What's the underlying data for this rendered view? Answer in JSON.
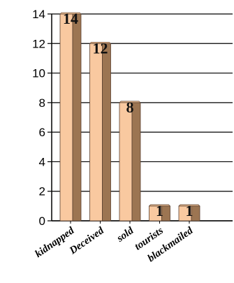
{
  "chart_data": {
    "type": "bar",
    "categories": [
      "kidnapped",
      "Deceived",
      "sold",
      "tourists",
      "blackmailed"
    ],
    "values": [
      14,
      12,
      8,
      1,
      1
    ],
    "data_labels": [
      "14",
      "12",
      "8",
      "1",
      "1"
    ],
    "title": "",
    "xlabel": "",
    "ylabel": "",
    "ylim": [
      0,
      14
    ],
    "yticks": [
      0,
      2,
      4,
      6,
      8,
      10,
      12,
      14
    ],
    "grid": true,
    "legend": "none",
    "style": "3d-column",
    "colors": {
      "bar_front": "#f9c9a0",
      "bar_side": "#9c7552",
      "bar_top": "#e0b289",
      "bar_outline": "#5a4030",
      "grid": "#000000"
    }
  }
}
